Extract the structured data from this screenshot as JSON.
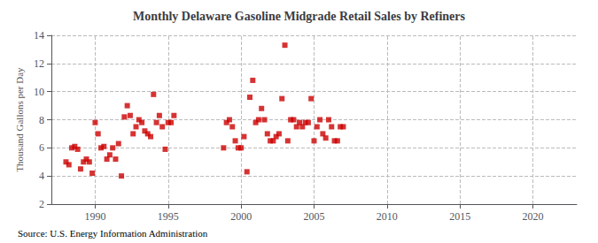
{
  "chart_data": {
    "type": "scatter",
    "title": "Monthly Delaware Gasoline Midgrade Retail Sales by Refiners",
    "ylabel": "Thousand Gallons per Day",
    "source": "Source: U.S. Energy Information Administration",
    "color": "#cc0000",
    "marker": "square",
    "grid": true,
    "xlim": [
      1987,
      2023
    ],
    "ylim": [
      2,
      14
    ],
    "xticks": [
      1990,
      1995,
      2000,
      2005,
      2010,
      2015,
      2020
    ],
    "yticks": [
      2,
      4,
      6,
      8,
      10,
      12,
      14
    ],
    "x": [
      1988.0,
      1988.2,
      1988.4,
      1988.6,
      1988.8,
      1989.0,
      1989.2,
      1989.4,
      1989.6,
      1989.8,
      1990.0,
      1990.2,
      1990.4,
      1990.6,
      1990.8,
      1991.0,
      1991.2,
      1991.4,
      1991.6,
      1991.8,
      1992.0,
      1992.2,
      1992.4,
      1992.6,
      1992.8,
      1993.0,
      1993.2,
      1993.4,
      1993.6,
      1993.8,
      1994.0,
      1994.2,
      1994.4,
      1994.6,
      1994.8,
      1995.0,
      1995.2,
      1995.4,
      1998.8,
      1999.0,
      1999.2,
      1999.4,
      1999.6,
      1999.8,
      2000.0,
      2000.2,
      2000.4,
      2000.6,
      2000.8,
      2001.0,
      2001.2,
      2001.4,
      2001.6,
      2001.8,
      2002.0,
      2002.2,
      2002.4,
      2002.6,
      2002.8,
      2003.0,
      2003.2,
      2003.4,
      2003.6,
      2003.8,
      2004.0,
      2004.2,
      2004.4,
      2004.6,
      2004.8,
      2005.0,
      2005.2,
      2005.4,
      2005.6,
      2005.8,
      2006.0,
      2006.2,
      2006.4,
      2006.6,
      2006.8,
      2007.0
    ],
    "values": [
      5.0,
      4.8,
      6.0,
      6.1,
      5.9,
      4.5,
      5.0,
      5.2,
      5.0,
      4.2,
      7.8,
      7.0,
      6.0,
      6.1,
      5.2,
      5.5,
      6.0,
      5.2,
      6.3,
      4.0,
      8.2,
      9.0,
      8.3,
      7.0,
      7.5,
      8.0,
      7.8,
      7.2,
      7.0,
      6.8,
      9.8,
      7.8,
      8.3,
      7.5,
      5.9,
      7.8,
      7.8,
      8.3,
      6.0,
      7.8,
      8.0,
      7.5,
      6.5,
      6.0,
      6.0,
      6.8,
      4.3,
      9.6,
      10.8,
      7.8,
      8.0,
      8.8,
      8.0,
      7.0,
      6.5,
      6.5,
      6.8,
      7.0,
      9.5,
      13.3,
      6.5,
      8.0,
      8.0,
      7.5,
      7.8,
      7.5,
      7.8,
      7.8,
      9.5,
      6.5,
      7.5,
      8.0,
      7.0,
      6.7,
      8.0,
      7.5,
      6.5,
      6.5,
      7.5,
      7.5
    ]
  }
}
